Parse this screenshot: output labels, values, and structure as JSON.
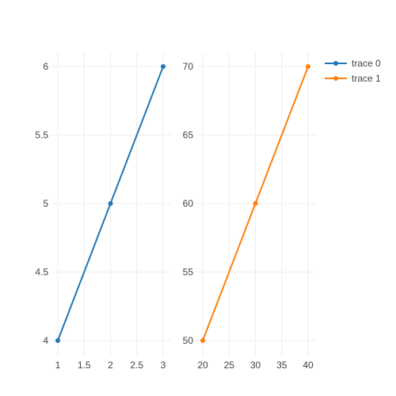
{
  "chart_data": {
    "type": "line",
    "grid": true,
    "legend_placement": "top-right",
    "series": [
      {
        "name": "trace 0",
        "color": "#1f77b4",
        "x": [
          1,
          2,
          3
        ],
        "y": [
          4,
          5,
          6
        ],
        "xlim": [
          1,
          3
        ],
        "ylim": [
          4,
          6
        ],
        "xticks": [
          1,
          1.5,
          2,
          2.5,
          3
        ],
        "yticks": [
          4,
          4.5,
          5,
          5.5,
          6
        ],
        "xtick_labels": [
          "1",
          "1.5",
          "2",
          "2.5",
          "3"
        ],
        "ytick_labels": [
          "4",
          "4.5",
          "5",
          "5.5",
          "6"
        ]
      },
      {
        "name": "trace 1",
        "color": "#ff7f0e",
        "x": [
          20,
          30,
          40
        ],
        "y": [
          50,
          60,
          70
        ],
        "xlim": [
          20,
          40
        ],
        "ylim": [
          50,
          70
        ],
        "xticks": [
          20,
          25,
          30,
          35,
          40
        ],
        "yticks": [
          50,
          55,
          60,
          65,
          70
        ],
        "xtick_labels": [
          "20",
          "25",
          "30",
          "35",
          "40"
        ],
        "ytick_labels": [
          "50",
          "55",
          "60",
          "65",
          "70"
        ]
      }
    ]
  }
}
